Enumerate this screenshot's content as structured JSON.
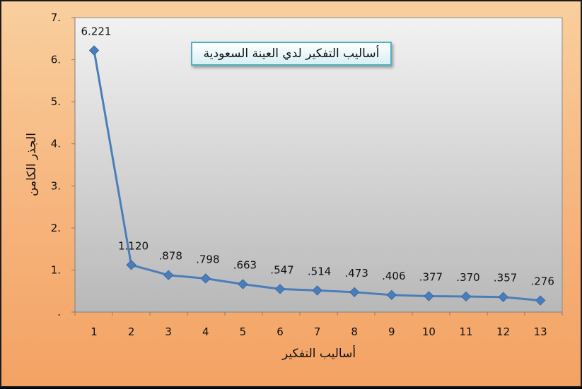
{
  "chart_data": {
    "type": "line",
    "title": "أساليب التفكير لدي العينة السعودية",
    "xlabel": "أساليب التفكير",
    "ylabel": "الجذر الكامن",
    "categories": [
      "1",
      "2",
      "3",
      "4",
      "5",
      "6",
      "7",
      "8",
      "9",
      "10",
      "11",
      "12",
      "13"
    ],
    "values": [
      6.221,
      1.12,
      0.878,
      0.798,
      0.663,
      0.547,
      0.514,
      0.473,
      0.406,
      0.377,
      0.37,
      0.357,
      0.276
    ],
    "data_labels": [
      "6.221",
      "1.120",
      ".878",
      ".798",
      ".663",
      ".547",
      ".514",
      ".473",
      ".406",
      ".377",
      ".370",
      ".357",
      ".276"
    ],
    "ylim": [
      0,
      7
    ],
    "y_ticks": [
      0,
      1,
      2,
      3,
      4,
      5,
      6,
      7
    ],
    "y_tick_labels": [
      ".",
      "1.",
      "2.",
      "3.",
      "4.",
      "5.",
      "6.",
      "7."
    ],
    "grid": false,
    "legend": "none",
    "colors": {
      "line": "#4a7ebb",
      "marker": "#4a7ebb",
      "plot_bg_top": "#f2f2f2",
      "plot_bg_bottom": "#b8b8b8",
      "title_border": "#4fb2c2"
    }
  }
}
